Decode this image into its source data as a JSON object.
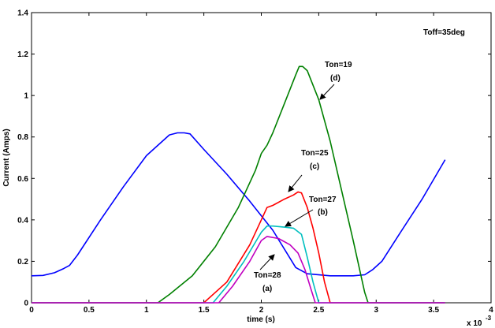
{
  "chart_data": {
    "type": "line",
    "xlabel": "time (s)",
    "ylabel": "Current (Amps)",
    "x_multiplier": "x 10",
    "x_multiplier_exp": "-3",
    "xlim": [
      0,
      4
    ],
    "ylim": [
      0,
      1.4
    ],
    "xticks": [
      "0",
      "0.5",
      "1",
      "1.5",
      "2",
      "2.5",
      "3",
      "3.5",
      "4"
    ],
    "yticks": [
      "0",
      "0.2",
      "0.4",
      "0.6",
      "0.8",
      "1",
      "1.2",
      "1.4"
    ],
    "grid": false,
    "legend": "none",
    "series": [
      {
        "color": "#0000ff",
        "x": [
          0,
          0.1,
          0.2,
          0.28,
          0.33,
          0.4,
          0.6,
          0.8,
          1.0,
          1.2,
          1.27,
          1.33,
          1.38,
          1.5,
          1.7,
          1.9,
          2.1,
          2.3,
          2.4,
          2.6,
          2.8,
          2.9,
          2.97,
          3.05,
          3.2,
          3.4,
          3.6
        ],
        "y": [
          0.13,
          0.132,
          0.145,
          0.165,
          0.18,
          0.23,
          0.4,
          0.56,
          0.71,
          0.81,
          0.82,
          0.82,
          0.815,
          0.74,
          0.62,
          0.49,
          0.35,
          0.17,
          0.14,
          0.13,
          0.13,
          0.135,
          0.16,
          0.2,
          0.33,
          0.5,
          0.69
        ]
      },
      {
        "color": "#008000",
        "x": [
          0,
          1.1,
          1.2,
          1.4,
          1.6,
          1.8,
          1.95,
          2.0,
          2.05,
          2.1,
          2.2,
          2.3,
          2.33,
          2.36,
          2.4,
          2.5,
          2.6,
          2.7,
          2.8,
          2.9,
          2.93,
          3.6
        ],
        "y": [
          0,
          0,
          0.04,
          0.13,
          0.27,
          0.46,
          0.64,
          0.72,
          0.76,
          0.82,
          0.96,
          1.1,
          1.14,
          1.14,
          1.12,
          0.98,
          0.78,
          0.54,
          0.3,
          0.05,
          0,
          0
        ]
      },
      {
        "color": "#ff0000",
        "x": [
          0,
          1.5,
          1.7,
          1.9,
          2.0,
          2.05,
          2.1,
          2.2,
          2.28,
          2.32,
          2.35,
          2.4,
          2.45,
          2.5,
          2.55,
          2.6,
          3.6
        ],
        "y": [
          0,
          0,
          0.1,
          0.28,
          0.4,
          0.46,
          0.47,
          0.5,
          0.52,
          0.535,
          0.53,
          0.46,
          0.36,
          0.24,
          0.1,
          0,
          0
        ]
      },
      {
        "color": "#00bfbf",
        "x": [
          0,
          1.58,
          1.7,
          1.85,
          2.0,
          2.05,
          2.1,
          2.2,
          2.28,
          2.35,
          2.4,
          2.45,
          2.5,
          3.6
        ],
        "y": [
          0,
          0,
          0.08,
          0.2,
          0.34,
          0.37,
          0.37,
          0.365,
          0.36,
          0.33,
          0.22,
          0.1,
          0,
          0
        ]
      },
      {
        "color": "#c000c0",
        "x": [
          0,
          1.63,
          1.75,
          1.9,
          2.0,
          2.05,
          2.15,
          2.25,
          2.32,
          2.38,
          2.43,
          2.47,
          3.6
        ],
        "y": [
          0,
          0,
          0.08,
          0.2,
          0.3,
          0.32,
          0.31,
          0.28,
          0.24,
          0.16,
          0.07,
          0,
          0
        ]
      }
    ],
    "annotations": [
      {
        "id": "toff",
        "lines": [
          "Toff=35deg"
        ]
      },
      {
        "id": "d",
        "lines": [
          "Ton=19",
          "(d)"
        ],
        "arrow_to": [
          2.48,
          1.0
        ]
      },
      {
        "id": "c",
        "lines": [
          "Ton=25",
          "(c)"
        ],
        "arrow_to": [
          2.28,
          0.53
        ]
      },
      {
        "id": "b",
        "lines": [
          "Ton=27",
          "(b)"
        ],
        "arrow_to": [
          2.08,
          0.37
        ]
      },
      {
        "id": "a",
        "lines": [
          "Ton=28",
          "(a)"
        ],
        "arrow_to": [
          2.32,
          0.24
        ]
      }
    ]
  }
}
